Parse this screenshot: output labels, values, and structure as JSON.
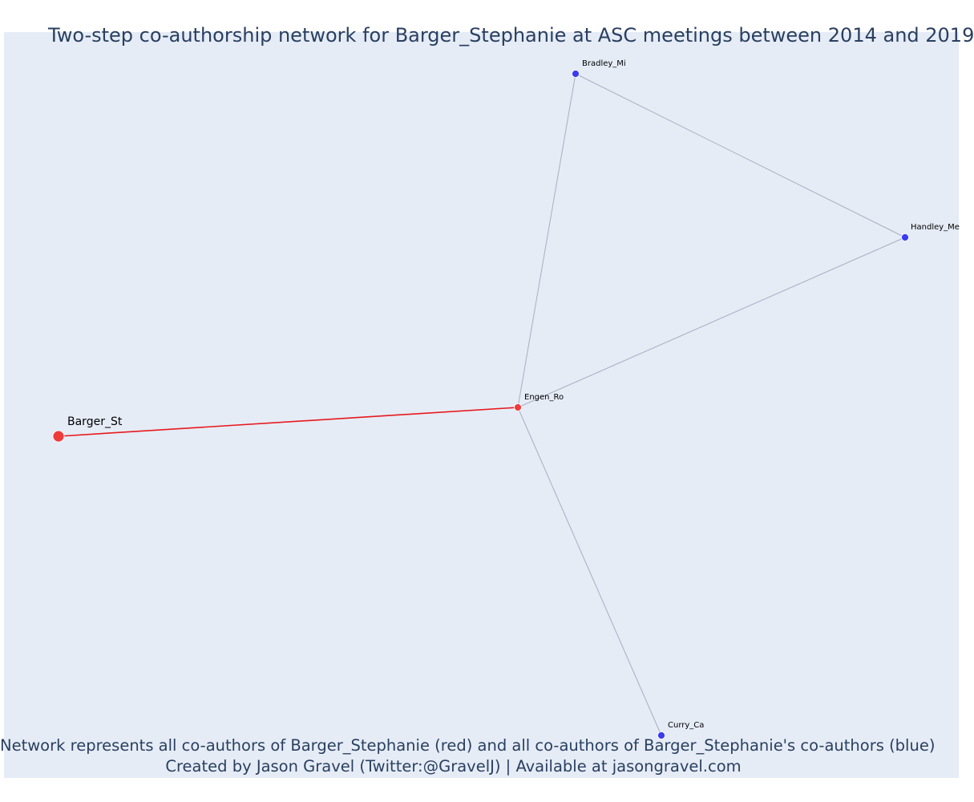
{
  "title": "Two-step co-authorship network for Barger_Stephanie at ASC meetings between 2014 and 2019",
  "caption": {
    "line1": "Network represents all co-authors of Barger_Stephanie (red) and all co-authors of Barger_Stephanie's co-authors (blue)",
    "line2": "Created by Jason Gravel (Twitter:@GravelJ) | Available at jasongravel.com"
  },
  "colors": {
    "plot_background": "#e5ecf6",
    "focal_node": "#ef3b3b",
    "coauthor_node": "#3b3bef",
    "focal_edge": "#e8191d",
    "other_edge": "#a9aec2",
    "title_text": "#2a3f5f"
  },
  "nodes": [
    {
      "id": "barger",
      "label": "Barger_St",
      "group": "focal"
    },
    {
      "id": "engen",
      "label": "Engen_Ro",
      "group": "coauthor-red"
    },
    {
      "id": "bradley",
      "label": "Bradley_Mi",
      "group": "second-step"
    },
    {
      "id": "handley",
      "label": "Handley_Me",
      "group": "second-step"
    },
    {
      "id": "curry",
      "label": "Curry_Ca",
      "group": "second-step"
    }
  ],
  "edges": [
    {
      "source": "barger",
      "target": "engen",
      "type": "focal"
    },
    {
      "source": "engen",
      "target": "bradley",
      "type": "other"
    },
    {
      "source": "engen",
      "target": "handley",
      "type": "other"
    },
    {
      "source": "engen",
      "target": "curry",
      "type": "other"
    },
    {
      "source": "bradley",
      "target": "handley",
      "type": "other"
    }
  ]
}
